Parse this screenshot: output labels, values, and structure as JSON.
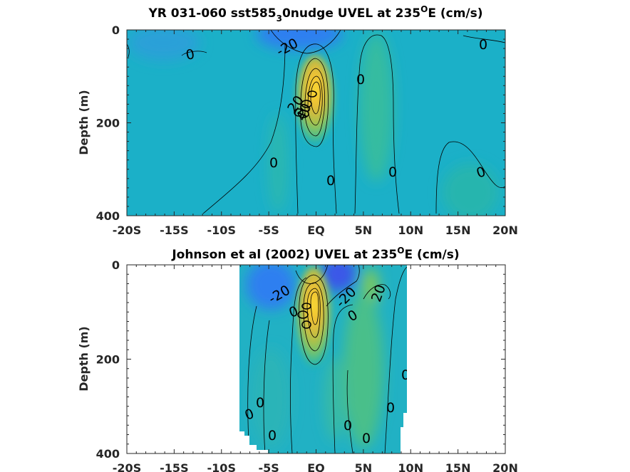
{
  "chart_data": [
    {
      "type": "contour",
      "title_main": "YR 031-060 sst585",
      "title_sub": "3",
      "title_mid": "0nudge UVEL at 235",
      "title_sup": "O",
      "title_end": "E (cm/s)",
      "ylabel": "Depth (m)",
      "xlabel": "",
      "x_tick_labels": [
        "-20S",
        "-15S",
        "-10S",
        "-5S",
        "EQ",
        "5N",
        "10N",
        "15N",
        "20N"
      ],
      "x_ticks": [
        -20,
        -15,
        -10,
        -5,
        0,
        5,
        10,
        15,
        20
      ],
      "y_tick_labels": [
        "0",
        "200",
        "400"
      ],
      "y_ticks": [
        0,
        200,
        400
      ],
      "xlim": [
        -20,
        20
      ],
      "ylim": [
        400,
        0
      ],
      "units": "cm/s",
      "colors": {
        "base": "#1bb0c8",
        "negative": "#2f7ff0",
        "strong_negative": "#3a56e8",
        "positive_low": "#31b99a",
        "positive_mid": "#8ccc4e",
        "positive_high": "#f8c931",
        "core": "#f9e535"
      },
      "core": {
        "x": 0,
        "depth": 120,
        "max_speed_approx": 100
      },
      "contour_labels": [
        {
          "text": "0",
          "x": -17.5,
          "depth": 50
        },
        {
          "text": "-20",
          "x": -9.5,
          "depth": 30
        },
        {
          "text": "0",
          "x": 18.0,
          "depth": 30
        },
        {
          "text": "0",
          "x": 5.0,
          "depth": 110
        },
        {
          "text": "0",
          "x": -5.2,
          "depth": 280
        },
        {
          "text": "0",
          "x": 1.2,
          "depth": 320
        },
        {
          "text": "0",
          "x": 8.5,
          "depth": 300
        },
        {
          "text": "0",
          "x": 17.5,
          "depth": 300
        },
        {
          "text": "20",
          "x": -1.2,
          "depth": 150
        },
        {
          "text": "40",
          "x": -1.3,
          "depth": 160
        }
      ]
    },
    {
      "type": "contour",
      "title_main": "Johnson et al (2002) UVEL at 235",
      "title_sup": "O",
      "title_end": "E (cm/s)",
      "ylabel": "Depth (m)",
      "xlabel": "",
      "x_tick_labels": [
        "-20S",
        "-15S",
        "-10S",
        "-5S",
        "EQ",
        "5N",
        "10N",
        "15N",
        "20N"
      ],
      "x_ticks": [
        -20,
        -15,
        -10,
        -5,
        0,
        5,
        10,
        15,
        20
      ],
      "y_tick_labels": [
        "0",
        "200",
        "400"
      ],
      "y_ticks": [
        0,
        200,
        400
      ],
      "xlim": [
        -20,
        20
      ],
      "ylim": [
        400,
        0
      ],
      "data_extent_x": [
        -8,
        10
      ],
      "units": "cm/s",
      "core": {
        "x": 0,
        "depth": 100,
        "max_speed_approx": 100
      },
      "contour_labels": [
        {
          "text": "-20",
          "x": -4.5,
          "depth": 55
        },
        {
          "text": "-20",
          "x": 3.5,
          "depth": 60
        },
        {
          "text": "20",
          "x": 7.3,
          "depth": 55
        },
        {
          "text": "0",
          "x": 4.7,
          "depth": 110
        },
        {
          "text": "0",
          "x": -2.3,
          "depth": 100
        },
        {
          "text": "0",
          "x": -7.3,
          "depth": 320
        },
        {
          "text": "0",
          "x": -6.1,
          "depth": 290
        },
        {
          "text": "0",
          "x": -5.0,
          "depth": 360
        },
        {
          "text": "0",
          "x": 4.0,
          "depth": 340
        },
        {
          "text": "0",
          "x": 5.4,
          "depth": 370
        },
        {
          "text": "0",
          "x": 8.3,
          "depth": 300
        },
        {
          "text": "0",
          "x": 10.0,
          "depth": 235
        }
      ]
    }
  ]
}
